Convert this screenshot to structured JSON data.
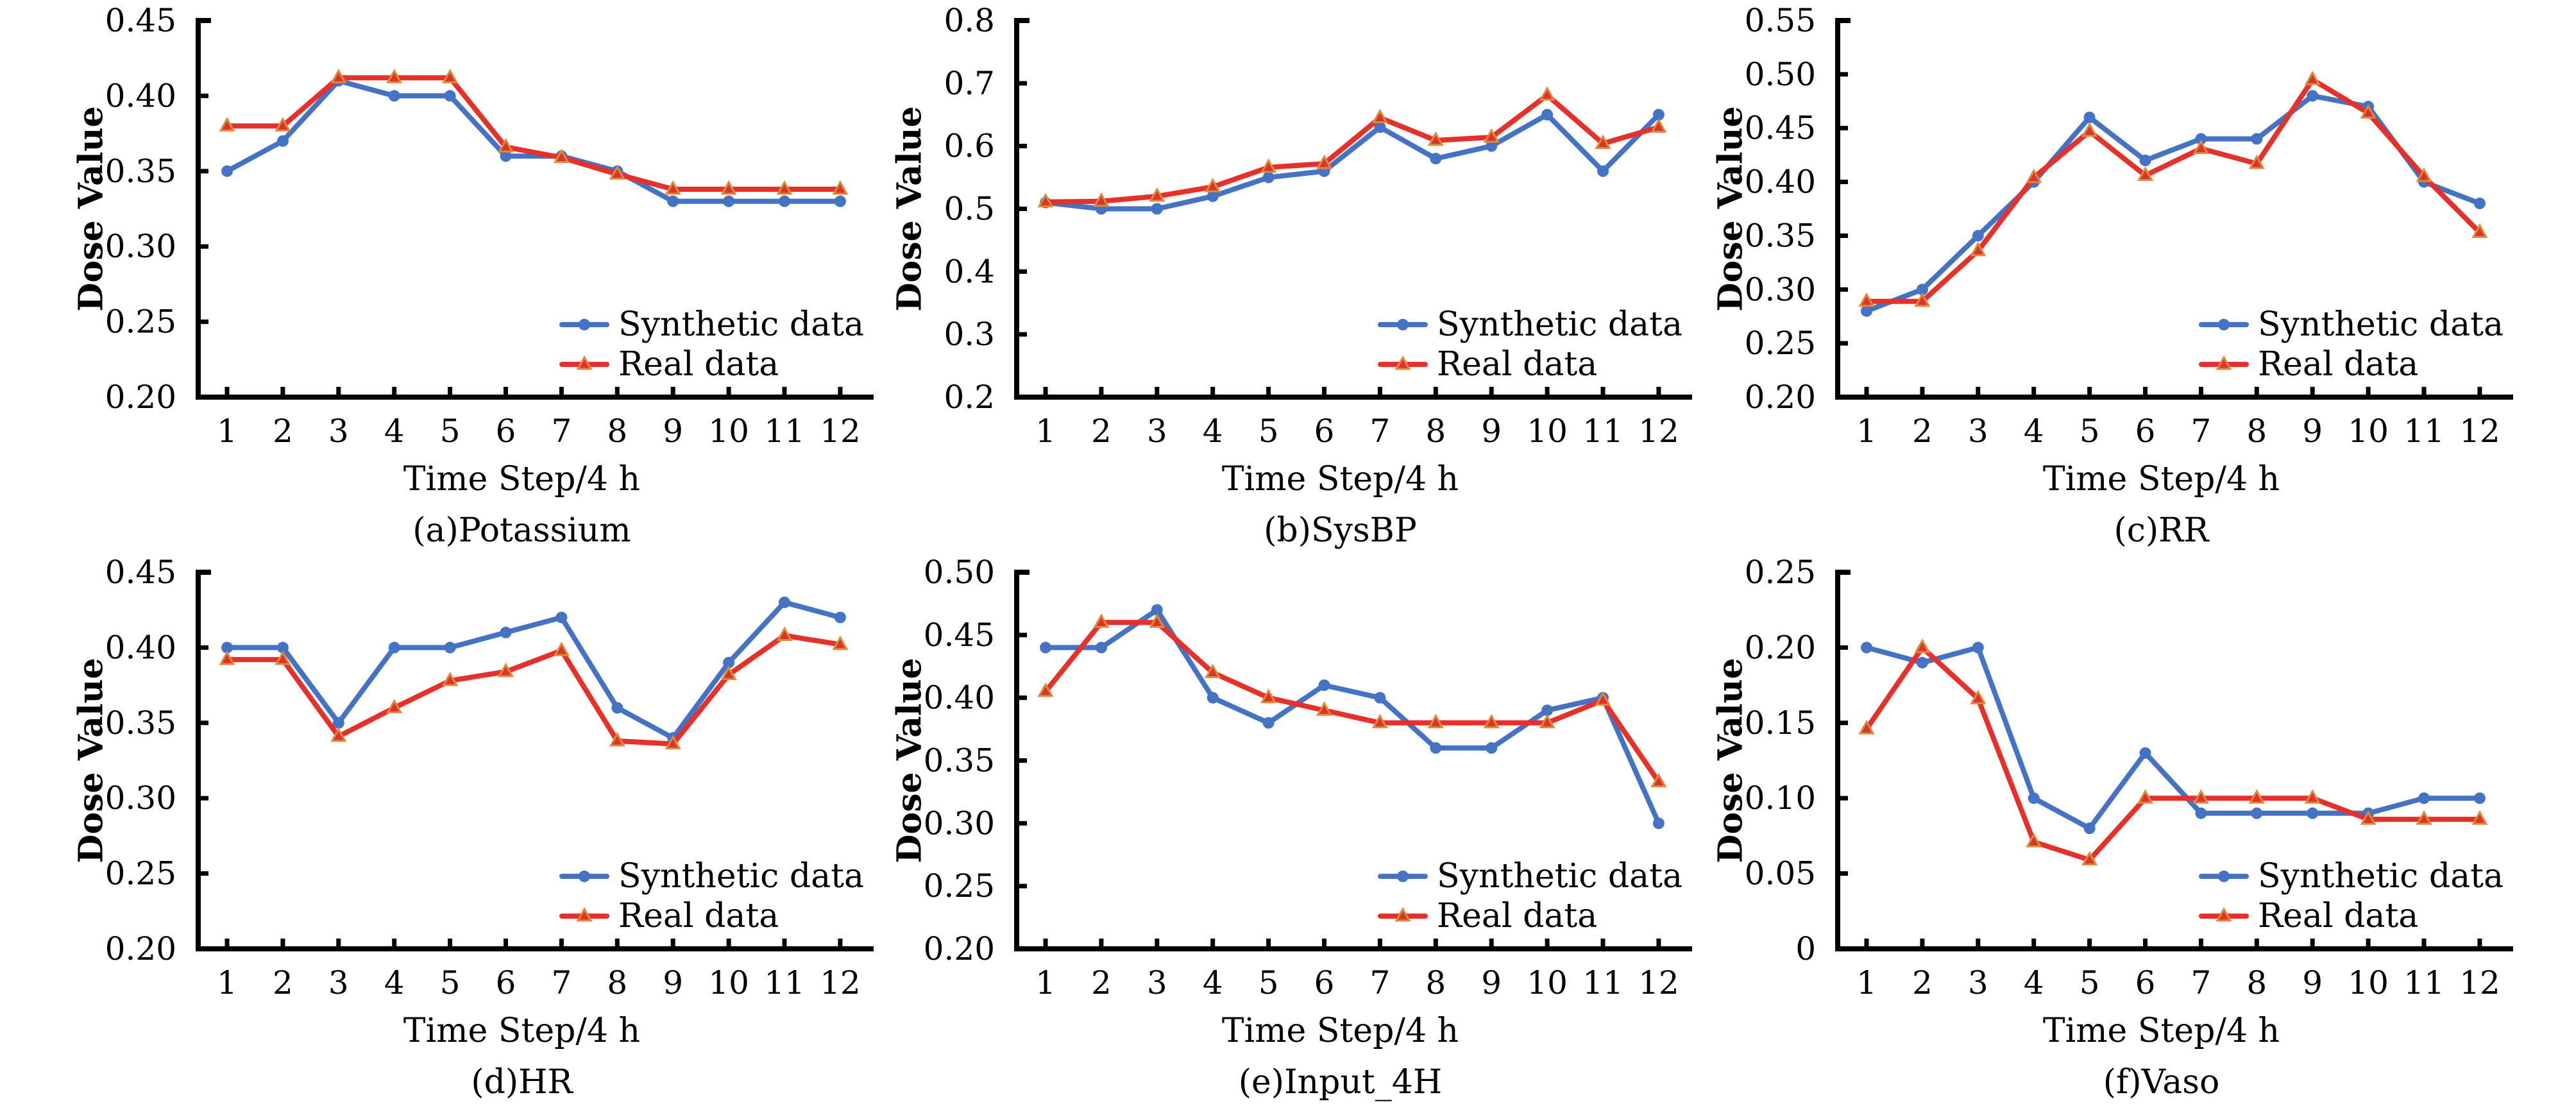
{
  "figure": {
    "legend": {
      "synthetic_label": "Synthetic data",
      "real_label": "Real data"
    },
    "colors": {
      "synthetic": "#4472C4",
      "real": "#E8302A",
      "real_marker_outline": "#E0893A"
    }
  },
  "chart_data": [
    {
      "type": "line",
      "caption": "(a)Potassium",
      "xlabel": "Time Step/4 h",
      "ylabel": "Dose Value",
      "x": [
        1,
        2,
        3,
        4,
        5,
        6,
        7,
        8,
        9,
        10,
        11,
        12
      ],
      "ylim": [
        0.2,
        0.45
      ],
      "yticks": [
        "0.20",
        "0.25",
        "0.30",
        "0.35",
        "0.40",
        "0.45"
      ],
      "legend_position": "bottom-right",
      "grid": false,
      "series": [
        {
          "name": "Synthetic data",
          "marker": "circle",
          "values": [
            0.35,
            0.37,
            0.41,
            0.4,
            0.4,
            0.36,
            0.36,
            0.35,
            0.33,
            0.33,
            0.33,
            0.33
          ]
        },
        {
          "name": "Real data",
          "marker": "triangle",
          "values": [
            0.38,
            0.38,
            0.412,
            0.412,
            0.412,
            0.366,
            0.359,
            0.348,
            0.338,
            0.338,
            0.338,
            0.338
          ]
        }
      ]
    },
    {
      "type": "line",
      "caption": "(b)SysBP",
      "xlabel": "Time Step/4 h",
      "ylabel": "Dose Value",
      "x": [
        1,
        2,
        3,
        4,
        5,
        6,
        7,
        8,
        9,
        10,
        11,
        12
      ],
      "ylim": [
        0.2,
        0.8
      ],
      "yticks": [
        "0.2",
        "0.3",
        "0.4",
        "0.5",
        "0.6",
        "0.7",
        "0.8"
      ],
      "legend_position": "bottom-right",
      "grid": false,
      "series": [
        {
          "name": "Synthetic data",
          "marker": "circle",
          "values": [
            0.51,
            0.5,
            0.5,
            0.52,
            0.55,
            0.56,
            0.63,
            0.58,
            0.6,
            0.65,
            0.56,
            0.65
          ]
        },
        {
          "name": "Real data",
          "marker": "triangle",
          "values": [
            0.511,
            0.512,
            0.52,
            0.535,
            0.566,
            0.572,
            0.645,
            0.609,
            0.614,
            0.681,
            0.604,
            0.63
          ]
        }
      ]
    },
    {
      "type": "line",
      "caption": "(c)RR",
      "xlabel": "Time Step/4 h",
      "ylabel": "Dose Value",
      "x": [
        1,
        2,
        3,
        4,
        5,
        6,
        7,
        8,
        9,
        10,
        11,
        12
      ],
      "ylim": [
        0.2,
        0.55
      ],
      "yticks": [
        "0.20",
        "0.25",
        "0.30",
        "0.35",
        "0.40",
        "0.45",
        "0.50",
        "0.55"
      ],
      "legend_position": "bottom-right",
      "grid": false,
      "series": [
        {
          "name": "Synthetic data",
          "marker": "circle",
          "values": [
            0.28,
            0.3,
            0.35,
            0.4,
            0.46,
            0.42,
            0.44,
            0.44,
            0.48,
            0.47,
            0.4,
            0.38
          ]
        },
        {
          "name": "Real data",
          "marker": "triangle",
          "values": [
            0.289,
            0.289,
            0.336,
            0.404,
            0.447,
            0.406,
            0.431,
            0.417,
            0.495,
            0.464,
            0.405,
            0.353
          ]
        }
      ]
    },
    {
      "type": "line",
      "caption": "(d)HR",
      "xlabel": "Time Step/4 h",
      "ylabel": "Dose Value",
      "x": [
        1,
        2,
        3,
        4,
        5,
        6,
        7,
        8,
        9,
        10,
        11,
        12
      ],
      "ylim": [
        0.2,
        0.45
      ],
      "yticks": [
        "0.20",
        "0.25",
        "0.30",
        "0.35",
        "0.40",
        "0.45"
      ],
      "legend_position": "bottom-right",
      "grid": false,
      "series": [
        {
          "name": "Synthetic data",
          "marker": "circle",
          "values": [
            0.4,
            0.4,
            0.35,
            0.4,
            0.4,
            0.41,
            0.42,
            0.36,
            0.34,
            0.39,
            0.43,
            0.42
          ]
        },
        {
          "name": "Real data",
          "marker": "triangle",
          "values": [
            0.392,
            0.392,
            0.341,
            0.36,
            0.378,
            0.384,
            0.398,
            0.338,
            0.336,
            0.382,
            0.408,
            0.402
          ]
        }
      ]
    },
    {
      "type": "line",
      "caption": "(e)Input_4H",
      "xlabel": "Time Step/4 h",
      "ylabel": "Dose Value",
      "x": [
        1,
        2,
        3,
        4,
        5,
        6,
        7,
        8,
        9,
        10,
        11,
        12
      ],
      "ylim": [
        0.2,
        0.5
      ],
      "yticks": [
        "0.20",
        "0.25",
        "0.30",
        "0.35",
        "0.40",
        "0.45",
        "0.50"
      ],
      "legend_position": "bottom-right",
      "grid": false,
      "series": [
        {
          "name": "Synthetic data",
          "marker": "circle",
          "values": [
            0.44,
            0.44,
            0.47,
            0.4,
            0.38,
            0.41,
            0.4,
            0.36,
            0.36,
            0.39,
            0.4,
            0.3
          ]
        },
        {
          "name": "Real data",
          "marker": "triangle",
          "values": [
            0.405,
            0.46,
            0.46,
            0.42,
            0.4,
            0.39,
            0.38,
            0.38,
            0.38,
            0.38,
            0.398,
            0.333
          ]
        }
      ]
    },
    {
      "type": "line",
      "caption": "(f)Vaso",
      "xlabel": "Time Step/4 h",
      "ylabel": "Dose Value",
      "x": [
        1,
        2,
        3,
        4,
        5,
        6,
        7,
        8,
        9,
        10,
        11,
        12
      ],
      "ylim": [
        0,
        0.25
      ],
      "yticks": [
        "0",
        "0.05",
        "0.10",
        "0.15",
        "0.20",
        "0.25"
      ],
      "legend_position": "bottom-right",
      "grid": false,
      "series": [
        {
          "name": "Synthetic data",
          "marker": "circle",
          "values": [
            0.2,
            0.19,
            0.2,
            0.1,
            0.08,
            0.13,
            0.09,
            0.09,
            0.09,
            0.09,
            0.1,
            0.1
          ]
        },
        {
          "name": "Real data",
          "marker": "triangle",
          "values": [
            0.146,
            0.2,
            0.166,
            0.071,
            0.059,
            0.1,
            0.1,
            0.1,
            0.1,
            0.086,
            0.086,
            0.086
          ]
        }
      ]
    }
  ]
}
